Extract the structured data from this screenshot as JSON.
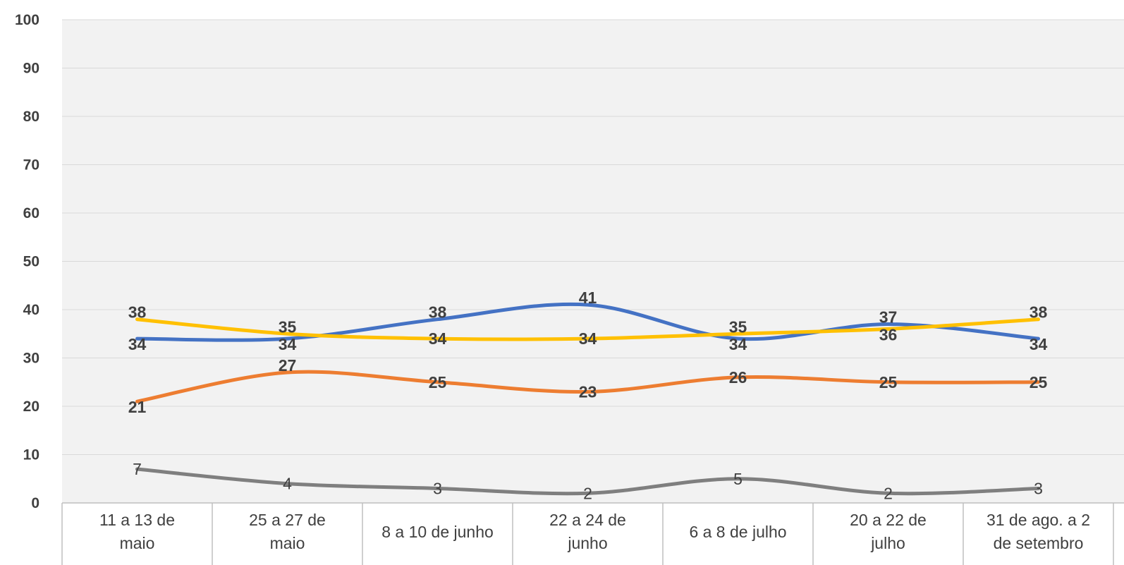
{
  "chart_data": {
    "type": "line",
    "title": "",
    "xlabel": "",
    "ylabel": "",
    "ylim": [
      0,
      100
    ],
    "yticks": [
      "0",
      "10",
      "20",
      "30",
      "40",
      "50",
      "60",
      "70",
      "80",
      "90",
      "100"
    ],
    "grid": true,
    "legend": "none",
    "categories": [
      [
        "11 a 13 de",
        "maio"
      ],
      [
        "25 a 27 de",
        "maio"
      ],
      [
        "8 a 10 de junho"
      ],
      [
        "22 a 24 de",
        "junho"
      ],
      [
        "6 a 8 de julho"
      ],
      [
        "20 a 22 de",
        "julho"
      ],
      [
        "31 de ago. a 2",
        "de setembro"
      ]
    ],
    "series": [
      {
        "color": "#4472C4",
        "values": [
          34,
          34,
          38,
          41,
          34,
          37,
          34
        ],
        "label_pos": [
          "below",
          "below",
          "above",
          "above",
          "below",
          "above",
          "below"
        ],
        "bold": true
      },
      {
        "color": "#ED7D31",
        "values": [
          21,
          27,
          25,
          23,
          26,
          25,
          25
        ],
        "label_pos": [
          "below",
          "above",
          "center",
          "center",
          "center",
          "center",
          "center"
        ],
        "bold": true
      },
      {
        "color": "#7F7F7F",
        "values": [
          7,
          4,
          3,
          2,
          5,
          2,
          3
        ],
        "label_pos": [
          "center",
          "center",
          "center",
          "center",
          "center",
          "center",
          "center"
        ],
        "bold": false
      },
      {
        "color": "#FFC000",
        "values": [
          38,
          35,
          34,
          34,
          35,
          36,
          38
        ],
        "label_pos": [
          "above",
          "above",
          "center",
          "center",
          "above",
          "below",
          "above"
        ],
        "bold": true
      }
    ]
  }
}
